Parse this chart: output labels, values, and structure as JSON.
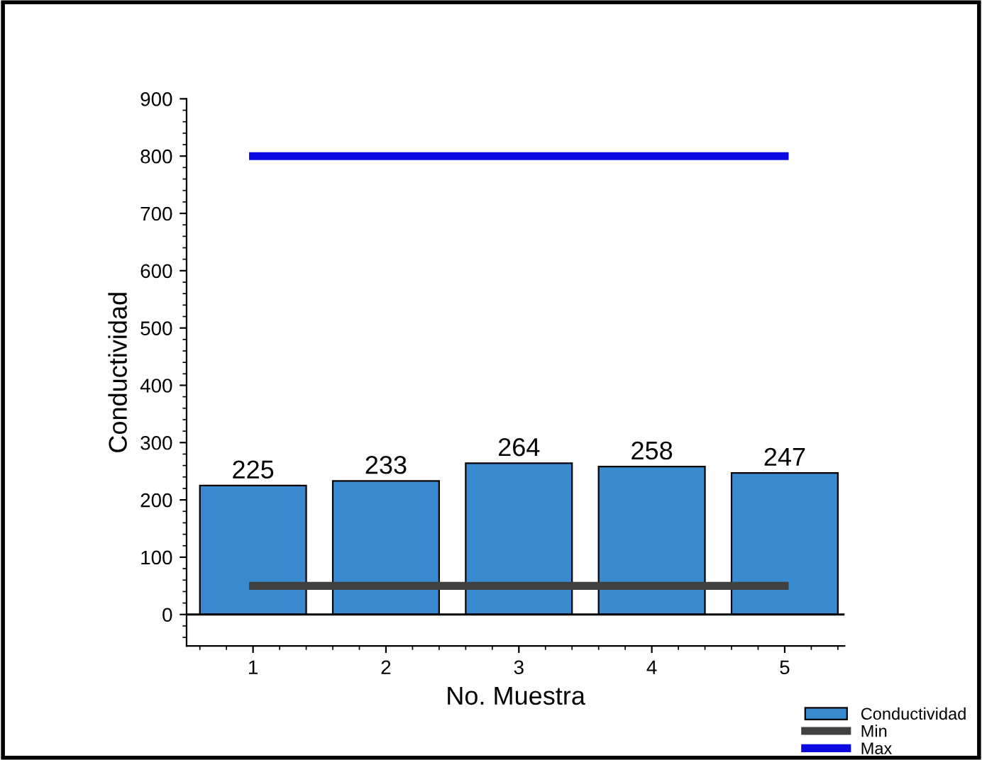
{
  "chart_data": {
    "type": "bar",
    "xlabel": "No. Muestra",
    "ylabel": "Conductividad",
    "x": [
      1,
      2,
      3,
      4,
      5
    ],
    "series": [
      {
        "name": "Conductividad",
        "color": "#3a8ad0",
        "values": [
          225,
          233,
          264,
          258,
          247
        ],
        "value_labels": [
          "225",
          "233",
          "264",
          "258",
          "247"
        ]
      },
      {
        "name": "Min",
        "type": "line",
        "color": "#404040",
        "values": [
          50,
          50,
          50,
          50,
          50
        ]
      },
      {
        "name": "Max",
        "type": "line",
        "color": "#0a0ae0",
        "values": [
          800,
          800,
          800,
          800,
          800
        ]
      }
    ],
    "ref_lines": [
      {
        "axis": "y",
        "value": 0,
        "color": "#000000"
      }
    ],
    "xlim": [
      0.5,
      5.45
    ],
    "xticks": [
      1,
      2,
      3,
      4,
      5
    ],
    "ylim": [
      -55,
      900
    ],
    "yticks": [
      0,
      100,
      200,
      300,
      400,
      500,
      600,
      700,
      800,
      900
    ],
    "grid": false,
    "legend": "bottom right",
    "marker": "none",
    "line_style": "solid"
  }
}
